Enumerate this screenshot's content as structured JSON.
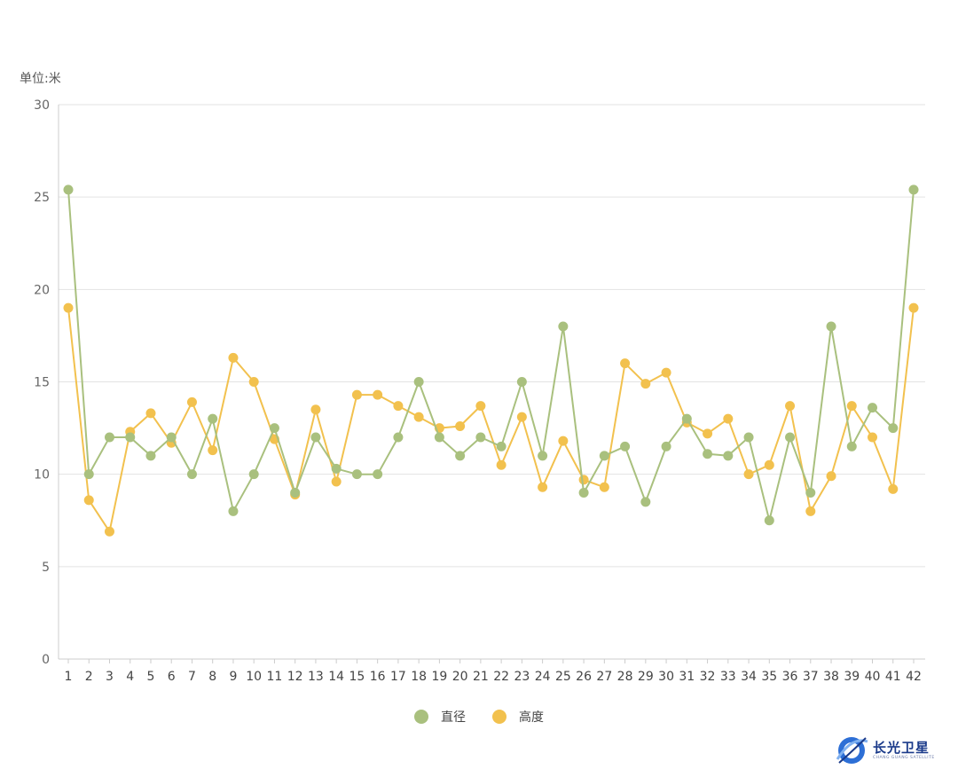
{
  "chart_data": {
    "type": "line",
    "unit_label": "单位:米",
    "x": [
      1,
      2,
      3,
      4,
      5,
      6,
      7,
      8,
      9,
      10,
      11,
      12,
      13,
      14,
      15,
      16,
      17,
      18,
      19,
      20,
      21,
      22,
      23,
      24,
      25,
      26,
      27,
      28,
      29,
      30,
      31,
      32,
      33,
      34,
      35,
      36,
      37,
      38,
      39,
      40,
      41,
      42
    ],
    "ylim": [
      0,
      30
    ],
    "yticks": [
      0,
      5,
      10,
      15,
      20,
      25,
      30
    ],
    "grid": true,
    "legend_position": "bottom",
    "series": [
      {
        "name": "直径",
        "color": "#a9c07e",
        "values": [
          25.4,
          10,
          12,
          12,
          11,
          12,
          10,
          13,
          8,
          10,
          12.5,
          9,
          12,
          10.3,
          10,
          10,
          12,
          15,
          12,
          11,
          12,
          11.5,
          15,
          11,
          18,
          9,
          11,
          11.5,
          8.5,
          11.5,
          13,
          11.1,
          11,
          12,
          7.5,
          12,
          9,
          18,
          11.5,
          13.6,
          12.5,
          25.4
        ]
      },
      {
        "name": "高度",
        "color": "#f2c14e",
        "values": [
          19,
          8.6,
          6.9,
          12.3,
          13.3,
          11.7,
          13.9,
          11.3,
          16.3,
          15,
          11.9,
          8.9,
          13.5,
          9.6,
          14.3,
          14.3,
          13.7,
          13.1,
          12.5,
          12.6,
          13.7,
          10.5,
          13.1,
          9.3,
          11.8,
          9.7,
          9.3,
          16,
          14.9,
          15.5,
          12.8,
          12.2,
          13,
          10,
          10.5,
          13.7,
          8,
          9.9,
          13.7,
          12,
          9.2,
          19
        ]
      }
    ]
  },
  "logo": {
    "name": "长光卫星",
    "sub": "CHANG GUANG SATELLITE"
  }
}
